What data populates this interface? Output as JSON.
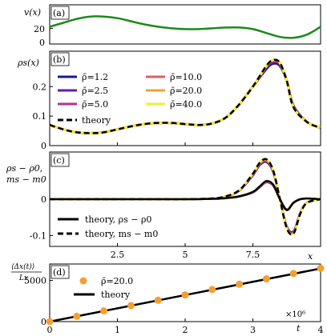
{
  "chart_data": [
    {
      "panel": "(a)",
      "type": "line",
      "ylabel": "v(x)",
      "xlim": [
        0,
        10
      ],
      "ylim": [
        0,
        50
      ],
      "yticks": [
        0,
        20
      ],
      "series": [
        {
          "color": "#1a8a1a",
          "x": [
            0,
            0.5,
            1,
            1.5,
            2,
            2.5,
            3,
            3.5,
            4,
            4.5,
            5,
            5.5,
            6,
            6.5,
            7,
            7.5,
            8,
            8.5,
            9,
            9.5,
            10
          ],
          "y": [
            22,
            27,
            32,
            35,
            35,
            33,
            29,
            25,
            22,
            20,
            19,
            19,
            20,
            21,
            21,
            19,
            14,
            9,
            8,
            12,
            22
          ]
        }
      ]
    },
    {
      "panel": "(b)",
      "type": "line",
      "ylabel": "ρs(x)",
      "xlim": [
        0,
        10
      ],
      "ylim": [
        0,
        0.32
      ],
      "yticks": [
        0,
        0.1,
        0.2
      ],
      "ytick_labels": [
        "0",
        "0.1",
        "0.2"
      ],
      "legend": [
        {
          "label": "ρ̄=1.2",
          "color": "#1a1a8c"
        },
        {
          "label": "ρ̄=2.5",
          "color": "#6a1aa8"
        },
        {
          "label": "ρ̄=5.0",
          "color": "#b0309a"
        },
        {
          "label": "ρ̄=10.0",
          "color": "#e06060"
        },
        {
          "label": "ρ̄=20.0",
          "color": "#f4a030"
        },
        {
          "label": "ρ̄=40.0",
          "color": "#f0f030"
        },
        {
          "label": "theory",
          "color": "#000000",
          "dashed": true
        }
      ],
      "x": [
        0,
        0.5,
        1,
        1.5,
        2,
        2.5,
        3,
        3.5,
        4,
        4.5,
        5,
        5.5,
        6,
        6.5,
        7,
        7.5,
        8,
        8.25,
        8.5,
        8.75,
        9,
        9.5,
        10
      ],
      "theory": [
        0.07,
        0.055,
        0.045,
        0.042,
        0.045,
        0.055,
        0.065,
        0.073,
        0.077,
        0.077,
        0.073,
        0.07,
        0.075,
        0.095,
        0.14,
        0.2,
        0.27,
        0.29,
        0.28,
        0.22,
        0.13,
        0.08,
        0.06
      ],
      "sim_series": [
        {
          "color": "#1a1a8c",
          "y": [
            0.07,
            0.055,
            0.045,
            0.042,
            0.045,
            0.055,
            0.065,
            0.073,
            0.077,
            0.077,
            0.073,
            0.07,
            0.075,
            0.095,
            0.14,
            0.2,
            0.26,
            0.278,
            0.27,
            0.22,
            0.135,
            0.08,
            0.06
          ]
        },
        {
          "color": "#6a1aa8",
          "y": [
            0.07,
            0.055,
            0.045,
            0.042,
            0.045,
            0.055,
            0.065,
            0.073,
            0.077,
            0.077,
            0.073,
            0.07,
            0.075,
            0.095,
            0.14,
            0.2,
            0.265,
            0.283,
            0.275,
            0.22,
            0.133,
            0.08,
            0.06
          ]
        },
        {
          "color": "#b0309a",
          "y": [
            0.07,
            0.055,
            0.045,
            0.042,
            0.045,
            0.055,
            0.065,
            0.073,
            0.077,
            0.077,
            0.073,
            0.07,
            0.075,
            0.095,
            0.14,
            0.2,
            0.268,
            0.287,
            0.278,
            0.22,
            0.131,
            0.08,
            0.06
          ]
        },
        {
          "color": "#e06060",
          "y": [
            0.07,
            0.055,
            0.045,
            0.042,
            0.045,
            0.055,
            0.065,
            0.073,
            0.077,
            0.077,
            0.073,
            0.07,
            0.075,
            0.095,
            0.14,
            0.2,
            0.27,
            0.29,
            0.28,
            0.22,
            0.13,
            0.08,
            0.06
          ]
        },
        {
          "color": "#f4a030",
          "y": [
            0.07,
            0.055,
            0.045,
            0.042,
            0.045,
            0.055,
            0.065,
            0.073,
            0.077,
            0.077,
            0.073,
            0.07,
            0.075,
            0.095,
            0.14,
            0.2,
            0.27,
            0.29,
            0.28,
            0.22,
            0.13,
            0.08,
            0.06
          ]
        },
        {
          "color": "#f0f030",
          "y": [
            0.07,
            0.055,
            0.045,
            0.042,
            0.045,
            0.055,
            0.065,
            0.073,
            0.077,
            0.077,
            0.073,
            0.07,
            0.075,
            0.095,
            0.14,
            0.2,
            0.27,
            0.29,
            0.28,
            0.22,
            0.13,
            0.08,
            0.06
          ]
        }
      ]
    },
    {
      "panel": "(c)",
      "type": "line",
      "ylabel_lines": [
        "ρs − ρ0,",
        "ms − m0"
      ],
      "xlabel": "x",
      "xlim": [
        0,
        10
      ],
      "ylim": [
        -0.13,
        0.13
      ],
      "yticks": [
        -0.1,
        0
      ],
      "ytick_labels": [
        "-0.1",
        "0"
      ],
      "xticks": [
        2.5,
        5,
        7.5
      ],
      "xtick_labels": [
        "2.5",
        "5",
        "7.5"
      ],
      "legend": [
        {
          "label": "theory, ρs − ρ0",
          "color": "#000000",
          "dashed": false
        },
        {
          "label": "theory, ms − m0",
          "color": "#000000",
          "dashed": true
        }
      ],
      "x": [
        0,
        1,
        2,
        3,
        4,
        5,
        6,
        6.5,
        7,
        7.5,
        7.75,
        8,
        8.25,
        8.5,
        8.75,
        9,
        9.25,
        9.5,
        10
      ],
      "rho_theory": [
        0,
        0,
        0,
        0,
        0,
        0,
        0.001,
        0.003,
        0.008,
        0.02,
        0.035,
        0.05,
        0.04,
        0.0,
        -0.03,
        -0.01,
        0.0,
        0.002,
        0
      ],
      "m_theory": [
        0,
        0,
        0,
        0,
        0,
        0,
        0.002,
        0.008,
        0.025,
        0.07,
        0.1,
        0.11,
        0.08,
        0.0,
        -0.08,
        -0.095,
        -0.04,
        -0.01,
        0
      ],
      "sim_colors": [
        "#1a1a8c",
        "#6a1aa8",
        "#b0309a",
        "#e06060",
        "#f4a030",
        "#f0f030"
      ]
    },
    {
      "panel": "(d)",
      "type": "scatter",
      "ylabel": "⟨Δx(t)⟩ / Lx",
      "xlabel": "t",
      "x_multiplier": "×10⁶",
      "xlim": [
        0,
        4
      ],
      "ylim": [
        0,
        7000
      ],
      "xticks": [
        0,
        1,
        2,
        3,
        4
      ],
      "yticks": [
        0,
        5000
      ],
      "legend": [
        {
          "label": "ρ̄=20.0",
          "color": "#f4a030",
          "marker": "circle"
        },
        {
          "label": "theory",
          "color": "#000000",
          "dashed": false
        }
      ],
      "points": {
        "color": "#f4a030",
        "x": [
          0,
          0.4,
          0.8,
          1.2,
          1.6,
          2.0,
          2.4,
          2.8,
          3.2,
          3.6,
          4.0
        ],
        "y": [
          0,
          650,
          1300,
          1950,
          2600,
          3250,
          3900,
          4550,
          5200,
          5850,
          6500
        ]
      },
      "theory": {
        "x": [
          0,
          4
        ],
        "y": [
          0,
          6450
        ]
      }
    }
  ],
  "labels": {
    "a": {
      "tag": "(a)",
      "ylabel": "v(x)",
      "yticks": [
        "20",
        "0"
      ]
    },
    "b": {
      "tag": "(b)",
      "ylabel": "ρs(x)"
    },
    "c": {
      "tag": "(c)",
      "ylabel1": "ρs − ρ0,",
      "ylabel2": "ms − m0",
      "xlabel": "x"
    },
    "d": {
      "tag": "(d)",
      "ylabel_num": "⟨Δx(t)⟩",
      "ylabel_den": "Lx",
      "xlabel": "t",
      "multiplier": "×10⁶"
    }
  }
}
